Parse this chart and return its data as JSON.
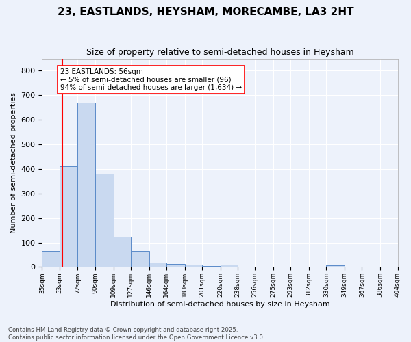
{
  "title_line1": "23, EASTLANDS, HEYSHAM, MORECAMBE, LA3 2HT",
  "title_line2": "Size of property relative to semi-detached houses in Heysham",
  "xlabel": "Distribution of semi-detached houses by size in Heysham",
  "ylabel": "Number of semi-detached properties",
  "bins": [
    35,
    53,
    72,
    90,
    109,
    127,
    146,
    164,
    183,
    201,
    220,
    238,
    256,
    275,
    293,
    312,
    330,
    349,
    367,
    386,
    404
  ],
  "bar_heights": [
    65,
    410,
    670,
    380,
    125,
    65,
    18,
    12,
    10,
    5,
    10,
    0,
    0,
    0,
    0,
    0,
    8,
    0,
    0,
    0,
    0
  ],
  "bar_color": "#c9d9f0",
  "bar_edge_color": "#5b8bc9",
  "red_line_x": 56,
  "annotation_text": "23 EASTLANDS: 56sqm\n← 5% of semi-detached houses are smaller (96)\n94% of semi-detached houses are larger (1,634) →",
  "ylim": [
    0,
    850
  ],
  "yticks": [
    0,
    100,
    200,
    300,
    400,
    500,
    600,
    700,
    800
  ],
  "background_color": "#edf2fb",
  "footer_text": "Contains HM Land Registry data © Crown copyright and database right 2025.\nContains public sector information licensed under the Open Government Licence v3.0."
}
